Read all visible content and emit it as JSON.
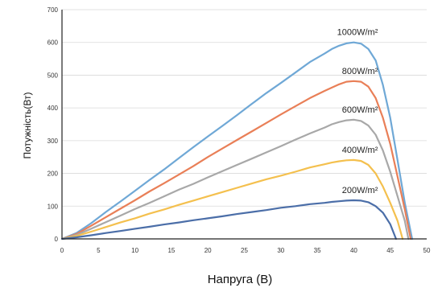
{
  "chart_data": {
    "type": "line",
    "title": "",
    "xlabel": "Напруга (В)",
    "ylabel": "Потужність(Вт)",
    "xlim": [
      0,
      50
    ],
    "ylim": [
      0,
      700
    ],
    "x_ticks": [
      0,
      5,
      10,
      15,
      20,
      25,
      30,
      35,
      40,
      45,
      50
    ],
    "y_ticks": [
      0,
      100,
      200,
      300,
      400,
      500,
      600,
      700
    ],
    "grid": "horizontal",
    "legend": "inline labels near curves",
    "series": [
      {
        "name": "1000W/m²",
        "color": "#6fa8d6",
        "points": [
          [
            0,
            0
          ],
          [
            2,
            18
          ],
          [
            4,
            48
          ],
          [
            6,
            82
          ],
          [
            8,
            114
          ],
          [
            10,
            147
          ],
          [
            12,
            180
          ],
          [
            14,
            212
          ],
          [
            16,
            246
          ],
          [
            18,
            280
          ],
          [
            20,
            313
          ],
          [
            22,
            345
          ],
          [
            24,
            378
          ],
          [
            26,
            412
          ],
          [
            28,
            445
          ],
          [
            30,
            476
          ],
          [
            32,
            508
          ],
          [
            34,
            540
          ],
          [
            36,
            566
          ],
          [
            37,
            580
          ],
          [
            38,
            590
          ],
          [
            39,
            597
          ],
          [
            40,
            600
          ],
          [
            41,
            596
          ],
          [
            42,
            580
          ],
          [
            43,
            545
          ],
          [
            44,
            470
          ],
          [
            45,
            370
          ],
          [
            46,
            240
          ],
          [
            47,
            110
          ],
          [
            48,
            0
          ]
        ]
      },
      {
        "name": "800W/m²",
        "color": "#e97f57",
        "points": [
          [
            0,
            0
          ],
          [
            2,
            15
          ],
          [
            4,
            40
          ],
          [
            6,
            66
          ],
          [
            8,
            92
          ],
          [
            10,
            118
          ],
          [
            12,
            145
          ],
          [
            14,
            170
          ],
          [
            16,
            196
          ],
          [
            18,
            222
          ],
          [
            20,
            250
          ],
          [
            22,
            276
          ],
          [
            24,
            302
          ],
          [
            26,
            328
          ],
          [
            28,
            354
          ],
          [
            30,
            380
          ],
          [
            32,
            405
          ],
          [
            34,
            430
          ],
          [
            36,
            452
          ],
          [
            37,
            462
          ],
          [
            38,
            472
          ],
          [
            39,
            480
          ],
          [
            40,
            482
          ],
          [
            41,
            480
          ],
          [
            42,
            465
          ],
          [
            43,
            430
          ],
          [
            44,
            370
          ],
          [
            45,
            290
          ],
          [
            46,
            190
          ],
          [
            47,
            90
          ],
          [
            47.8,
            0
          ]
        ]
      },
      {
        "name": "600W/m²",
        "color": "#a8a8a8",
        "points": [
          [
            0,
            0
          ],
          [
            2,
            12
          ],
          [
            4,
            31
          ],
          [
            6,
            51
          ],
          [
            8,
            71
          ],
          [
            10,
            91
          ],
          [
            12,
            110
          ],
          [
            14,
            130
          ],
          [
            16,
            150
          ],
          [
            18,
            168
          ],
          [
            20,
            188
          ],
          [
            22,
            207
          ],
          [
            24,
            226
          ],
          [
            26,
            245
          ],
          [
            28,
            264
          ],
          [
            30,
            283
          ],
          [
            32,
            303
          ],
          [
            34,
            322
          ],
          [
            36,
            340
          ],
          [
            37,
            350
          ],
          [
            38,
            357
          ],
          [
            39,
            362
          ],
          [
            40,
            364
          ],
          [
            41,
            360
          ],
          [
            42,
            346
          ],
          [
            43,
            318
          ],
          [
            44,
            270
          ],
          [
            45,
            205
          ],
          [
            46,
            130
          ],
          [
            47,
            55
          ],
          [
            47.5,
            0
          ]
        ]
      },
      {
        "name": "400W/m²",
        "color": "#f4c04e",
        "points": [
          [
            0,
            0
          ],
          [
            2,
            9
          ],
          [
            4,
            22
          ],
          [
            6,
            36
          ],
          [
            8,
            50
          ],
          [
            10,
            63
          ],
          [
            12,
            77
          ],
          [
            14,
            90
          ],
          [
            16,
            104
          ],
          [
            18,
            117
          ],
          [
            20,
            130
          ],
          [
            22,
            143
          ],
          [
            24,
            156
          ],
          [
            26,
            169
          ],
          [
            28,
            182
          ],
          [
            30,
            193
          ],
          [
            32,
            205
          ],
          [
            34,
            218
          ],
          [
            36,
            228
          ],
          [
            37,
            233
          ],
          [
            38,
            237
          ],
          [
            39,
            240
          ],
          [
            40,
            241
          ],
          [
            41,
            238
          ],
          [
            42,
            226
          ],
          [
            43,
            200
          ],
          [
            44,
            160
          ],
          [
            45,
            110
          ],
          [
            46,
            55
          ],
          [
            46.7,
            0
          ]
        ]
      },
      {
        "name": "200W/m²",
        "color": "#4b6ea8",
        "points": [
          [
            0,
            0
          ],
          [
            2,
            5
          ],
          [
            4,
            11
          ],
          [
            6,
            18
          ],
          [
            8,
            24
          ],
          [
            10,
            31
          ],
          [
            12,
            37
          ],
          [
            14,
            44
          ],
          [
            16,
            50
          ],
          [
            18,
            57
          ],
          [
            20,
            63
          ],
          [
            22,
            69
          ],
          [
            24,
            76
          ],
          [
            26,
            82
          ],
          [
            28,
            88
          ],
          [
            30,
            95
          ],
          [
            32,
            100
          ],
          [
            34,
            106
          ],
          [
            36,
            110
          ],
          [
            37,
            113
          ],
          [
            38,
            115
          ],
          [
            39,
            117
          ],
          [
            40,
            118
          ],
          [
            41,
            117
          ],
          [
            42,
            112
          ],
          [
            43,
            100
          ],
          [
            44,
            80
          ],
          [
            45,
            45
          ],
          [
            45.8,
            0
          ]
        ]
      }
    ]
  }
}
